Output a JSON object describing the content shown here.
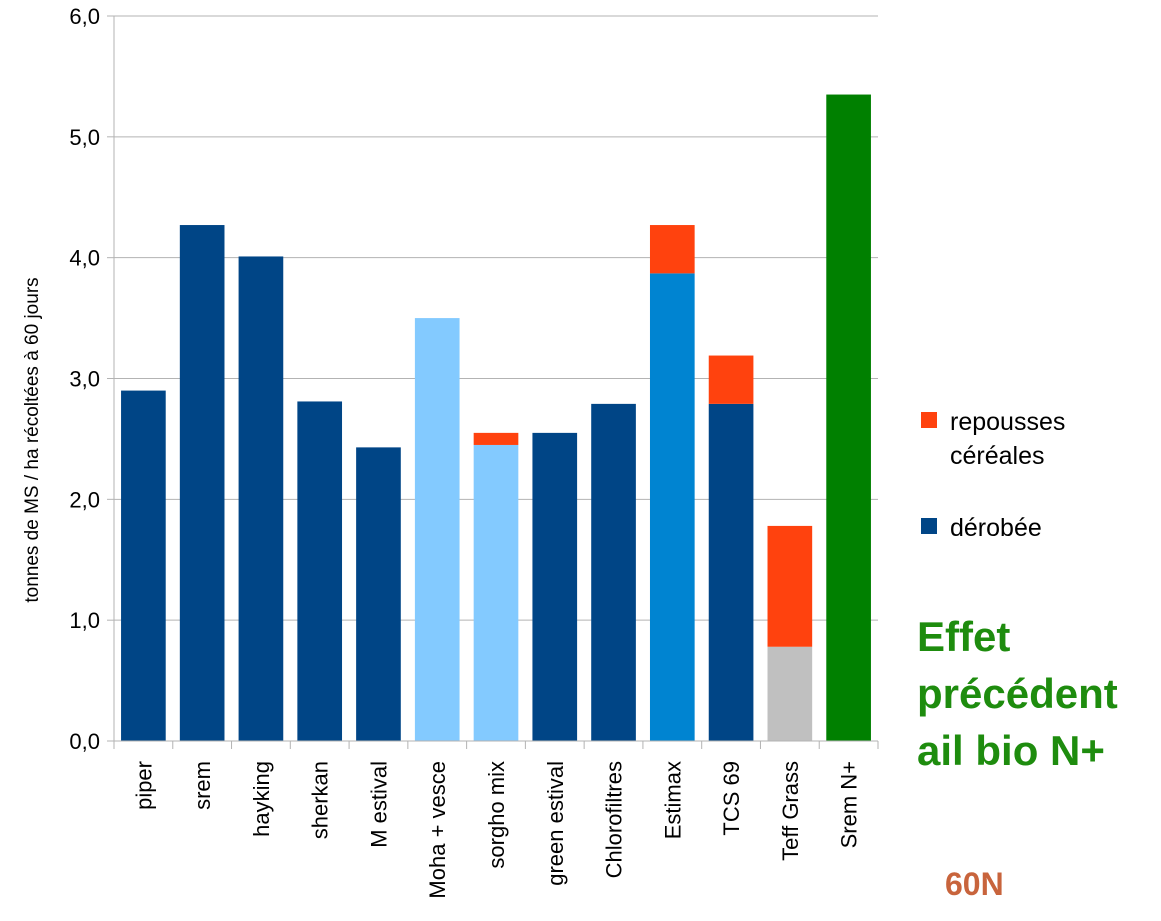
{
  "chart_data": {
    "type": "bar",
    "stacked": true,
    "title": "",
    "ylabel": "tonnes de MS / ha récoltées à 60 jours",
    "ylim": [
      0,
      6
    ],
    "yticks": [
      "0,0",
      "1,0",
      "2,0",
      "3,0",
      "4,0",
      "5,0",
      "6,0"
    ],
    "grid": true,
    "categories": [
      "piper",
      "srem",
      "hayking",
      "sherkan",
      "M estival",
      "Moha + vesce",
      "sorgho mix",
      "green estival",
      "Chlorofiltres",
      "Estimax",
      "TCS 69",
      "Teff Grass",
      "Srem N+"
    ],
    "series": [
      {
        "name": "dérobée",
        "values": [
          2.9,
          4.27,
          4.01,
          2.81,
          2.43,
          3.5,
          2.45,
          2.55,
          2.79,
          3.87,
          2.79,
          0.78,
          5.35
        ]
      },
      {
        "name": "repousses céréales",
        "values": [
          0,
          0,
          0,
          0,
          0,
          0,
          0.1,
          0,
          0,
          0.4,
          0.4,
          1.0,
          0
        ]
      }
    ],
    "base_colors": [
      "#004586",
      "#004586",
      "#004586",
      "#004586",
      "#004586",
      "#83caff",
      "#83caff",
      "#004586",
      "#004586",
      "#0084d1",
      "#004586",
      "#c0c0c0",
      "#008000"
    ],
    "stack_color": "#ff420e",
    "legend": {
      "position": "right",
      "items": [
        {
          "label": "repousses céréales",
          "color": "#ff420e"
        },
        {
          "label": "dérobée",
          "color": "#004586"
        }
      ]
    },
    "annotations": [
      {
        "text": "Effet\nprécédent\nail bio N+",
        "color": "#1e8c0e"
      },
      {
        "text": "60N",
        "color": "#c8643c"
      }
    ]
  }
}
